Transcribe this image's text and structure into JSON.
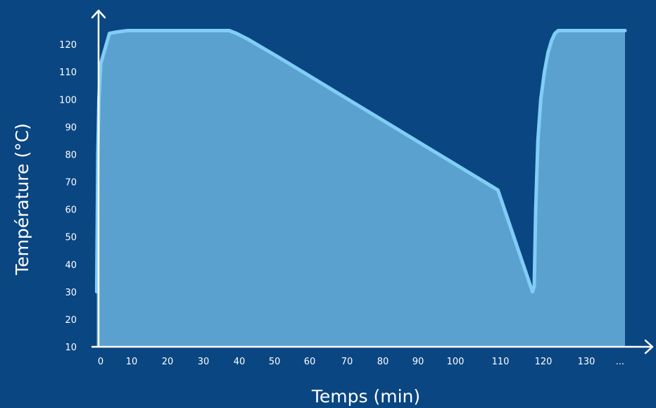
{
  "chart_data": {
    "type": "area",
    "title": "",
    "xlabel": "Temps (min)",
    "ylabel": "Température (°C)",
    "xlim": [
      0,
      145
    ],
    "ylim": [
      10,
      130
    ],
    "x_ticks": [
      {
        "label": "0",
        "value": 0
      },
      {
        "label": "10",
        "value": 10
      },
      {
        "label": "20",
        "value": 20
      },
      {
        "label": "30",
        "value": 30
      },
      {
        "label": "40",
        "value": 40
      },
      {
        "label": "50",
        "value": 50
      },
      {
        "label": "60",
        "value": 60
      },
      {
        "label": "70",
        "value": 70
      },
      {
        "label": "80",
        "value": 80
      },
      {
        "label": "90",
        "value": 90
      },
      {
        "label": "100",
        "value": 100
      },
      {
        "label": "110",
        "value": 110
      },
      {
        "label": "120",
        "value": 120
      },
      {
        "label": "130",
        "value": 130
      },
      {
        "label": "...",
        "value": 145
      }
    ],
    "y_ticks": [
      10,
      20,
      30,
      40,
      50,
      60,
      70,
      80,
      90,
      100,
      110,
      120
    ],
    "grid": false,
    "legend": "none",
    "colors": {
      "background": "#0a4682",
      "area_fill": "#5aa1cf",
      "line": "#80cdf5",
      "axis": "#ffffff",
      "text": "#ffffff"
    },
    "series": [
      {
        "x": [
          -0.5,
          -0.2,
          0.1,
          0.6,
          1.5,
          3,
          5,
          8,
          12,
          20,
          30,
          36,
          38,
          41,
          50,
          60,
          70,
          80,
          90,
          100,
          110,
          119.5,
          120,
          120.4,
          121,
          121.8,
          122.8,
          123.8,
          124.8,
          125.7,
          126.6,
          130,
          145
        ],
        "y": [
          30,
          80,
          100,
          113,
          117,
          124,
          124.5,
          125,
          125,
          125,
          125,
          125,
          124,
          122,
          115,
          107,
          99,
          91,
          83,
          75,
          67,
          30,
          32,
          60,
          85,
          100,
          110,
          117,
          121.5,
          124,
          125,
          125,
          125
        ]
      }
    ]
  }
}
